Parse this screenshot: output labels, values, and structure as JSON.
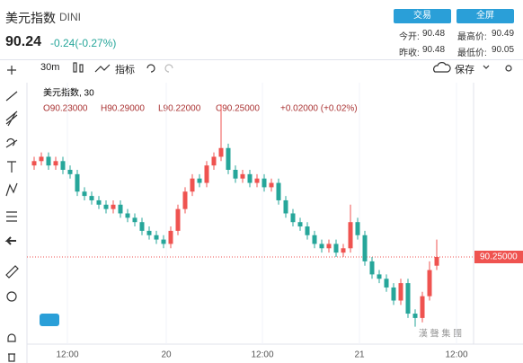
{
  "header": {
    "name": "美元指数",
    "code": "DINI",
    "price": "90.24",
    "change": "-0.24(-0.27%)",
    "buttons": [
      "交易",
      "全屏"
    ],
    "stats": [
      {
        "label": "今开:",
        "value": "90.48"
      },
      {
        "label": "最高价:",
        "value": "90.49"
      },
      {
        "label": "昨收:",
        "value": "90.48"
      },
      {
        "label": "最低价:",
        "value": "90.05"
      }
    ]
  },
  "toolbar": {
    "interval": "30m",
    "indicators": "指标",
    "save": "保存"
  },
  "chart_data": {
    "type": "candlestick",
    "title": "美元指数, 30",
    "ohlc_legend": [
      "O90.23000",
      "H90.29000",
      "L90.22000",
      "C90.25000",
      "+0.02000 (+0.02%)"
    ],
    "x_labels": [
      "12:00",
      "20",
      "12:00",
      "21",
      "12:00"
    ],
    "open": [
      90.46,
      90.47,
      90.48,
      90.46,
      90.47,
      90.45,
      90.44,
      90.4,
      90.39,
      90.38,
      90.37,
      90.36,
      90.37,
      90.35,
      90.34,
      90.33,
      90.31,
      90.3,
      90.29,
      90.28,
      90.31,
      90.36,
      90.4,
      90.43,
      90.42,
      90.46,
      90.48,
      90.5,
      90.45,
      90.43,
      90.44,
      90.42,
      90.43,
      90.41,
      90.42,
      90.38,
      90.35,
      90.33,
      90.32,
      90.3,
      90.28,
      90.27,
      90.28,
      90.26,
      90.27,
      90.33,
      90.3,
      90.24,
      90.21,
      90.2,
      90.18,
      90.15,
      90.19,
      90.12,
      90.11,
      90.16,
      90.23
    ],
    "high": [
      90.48,
      90.49,
      90.49,
      90.48,
      90.48,
      90.46,
      90.45,
      90.41,
      90.4,
      90.39,
      90.38,
      90.38,
      90.38,
      90.36,
      90.35,
      90.34,
      90.32,
      90.31,
      90.3,
      90.32,
      90.37,
      90.41,
      90.44,
      90.44,
      90.47,
      90.49,
      90.6,
      90.51,
      90.46,
      90.45,
      90.45,
      90.44,
      90.44,
      90.43,
      90.43,
      90.39,
      90.36,
      90.34,
      90.33,
      90.31,
      90.29,
      90.29,
      90.29,
      90.28,
      90.37,
      90.34,
      90.31,
      90.25,
      90.22,
      90.21,
      90.19,
      90.2,
      90.2,
      90.13,
      90.17,
      90.24,
      90.29
    ],
    "low": [
      90.45,
      90.46,
      90.45,
      90.45,
      90.44,
      90.43,
      90.39,
      90.38,
      90.37,
      90.36,
      90.35,
      90.35,
      90.34,
      90.33,
      90.32,
      90.3,
      90.29,
      90.28,
      90.27,
      90.27,
      90.3,
      90.35,
      90.39,
      90.41,
      90.41,
      90.45,
      90.47,
      90.44,
      90.42,
      90.42,
      90.41,
      90.41,
      90.4,
      90.4,
      90.37,
      90.34,
      90.32,
      90.31,
      90.29,
      90.27,
      90.26,
      90.26,
      90.25,
      90.25,
      90.26,
      90.29,
      90.23,
      90.2,
      90.19,
      90.17,
      90.14,
      90.14,
      90.11,
      90.09,
      90.1,
      90.15,
      90.22
    ],
    "close": [
      90.47,
      90.48,
      90.46,
      90.47,
      90.45,
      90.44,
      90.4,
      90.39,
      90.38,
      90.37,
      90.36,
      90.37,
      90.35,
      90.34,
      90.33,
      90.31,
      90.3,
      90.29,
      90.28,
      90.31,
      90.36,
      90.4,
      90.43,
      90.42,
      90.46,
      90.48,
      90.5,
      90.45,
      90.43,
      90.44,
      90.42,
      90.43,
      90.41,
      90.42,
      90.38,
      90.35,
      90.33,
      90.32,
      90.3,
      90.28,
      90.27,
      90.28,
      90.26,
      90.27,
      90.33,
      90.3,
      90.24,
      90.21,
      90.2,
      90.18,
      90.15,
      90.19,
      90.12,
      90.11,
      90.16,
      90.22,
      90.25
    ],
    "ylim": [
      90.05,
      90.65
    ],
    "last_price": {
      "value": 90.25,
      "label": "90.25000"
    },
    "up_color": "#ef5350",
    "down_color": "#26a69a"
  },
  "watermark": "漢 聲 集 團"
}
